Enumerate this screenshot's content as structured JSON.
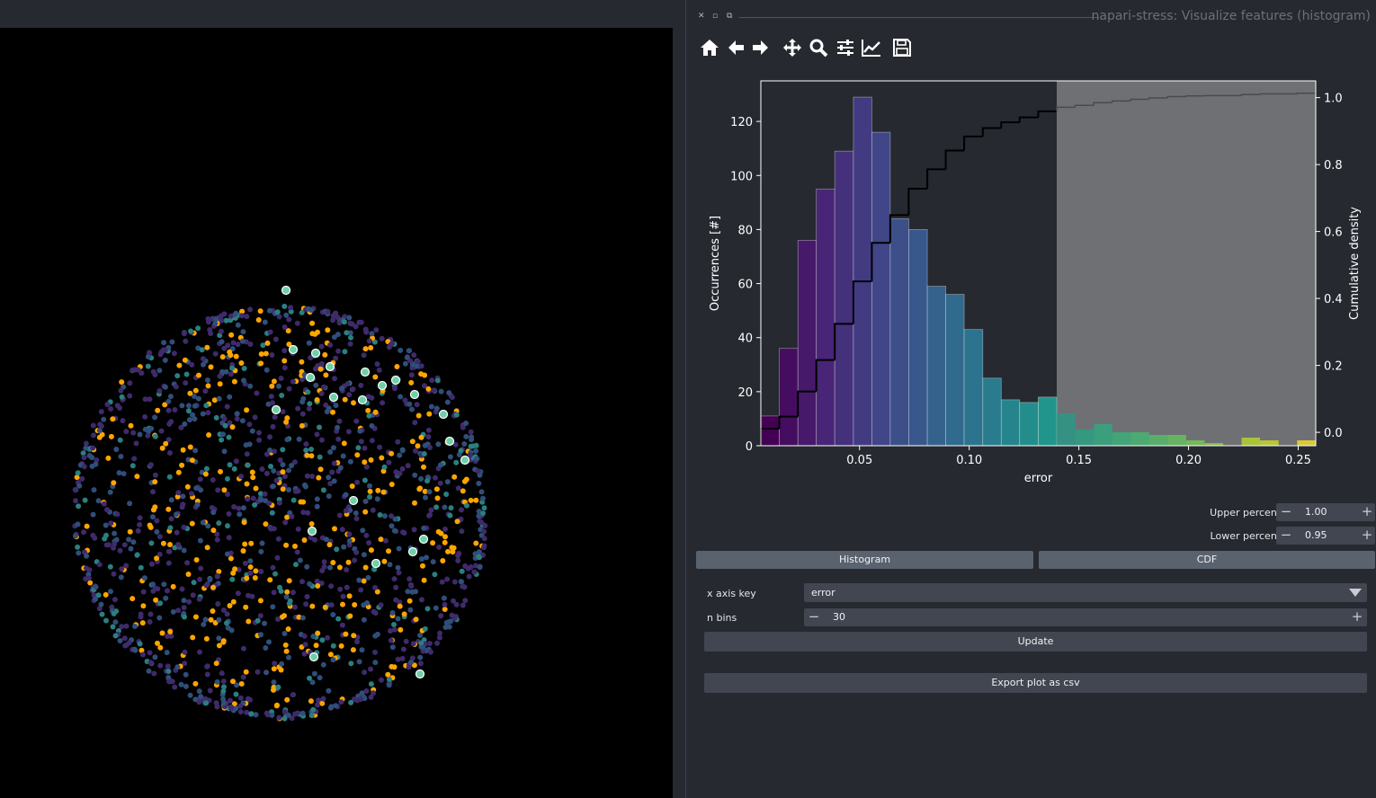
{
  "dock": {
    "title": "napari-stress: Visualize features (histogram)",
    "close_glyph": "✕",
    "float_glyph": "⧉",
    "min_glyph": "▫"
  },
  "toolbar": {
    "icons": [
      "home-icon",
      "back-icon",
      "forward-icon",
      "pan-icon",
      "zoom-icon",
      "subplots-icon",
      "edit-axes-icon",
      "save-icon"
    ]
  },
  "chart_data": {
    "type": "bar",
    "xlabel": "error",
    "ylabel": "Occurrences [#]",
    "y2label": "Cumulative density",
    "xlim": [
      0.005,
      0.258
    ],
    "ylim": [
      0,
      135
    ],
    "y2lim": [
      -0.04,
      1.05
    ],
    "xticks": [
      0.05,
      0.1,
      0.15,
      0.2,
      0.25
    ],
    "xtick_labels": [
      "0.05",
      "0.10",
      "0.15",
      "0.20",
      "0.25"
    ],
    "yticks": [
      0,
      20,
      40,
      60,
      80,
      100,
      120
    ],
    "ytick_labels": [
      "0",
      "20",
      "40",
      "60",
      "80",
      "100",
      "120"
    ],
    "y2ticks": [
      0.0,
      0.2,
      0.4,
      0.6,
      0.8,
      1.0
    ],
    "y2tick_labels": [
      "0.0",
      "0.2",
      "0.4",
      "0.6",
      "0.8",
      "1.0"
    ],
    "bin_edges": [
      0.005,
      0.0134,
      0.0219,
      0.0303,
      0.0387,
      0.0472,
      0.0556,
      0.064,
      0.0724,
      0.0809,
      0.0893,
      0.0977,
      0.1062,
      0.1146,
      0.123,
      0.1315,
      0.1399,
      0.1483,
      0.1568,
      0.1652,
      0.1736,
      0.182,
      0.1905,
      0.1989,
      0.2073,
      0.2158,
      0.2242,
      0.2326,
      0.2411,
      0.2495,
      0.2579
    ],
    "counts": [
      11,
      36,
      76,
      95,
      109,
      129,
      116,
      84,
      80,
      59,
      56,
      43,
      25,
      17,
      16,
      18,
      12,
      6,
      8,
      5,
      5,
      4,
      4,
      2,
      1,
      0,
      3,
      2,
      0,
      2
    ],
    "cdf": [
      0.011,
      0.047,
      0.122,
      0.216,
      0.324,
      0.451,
      0.566,
      0.649,
      0.728,
      0.786,
      0.842,
      0.884,
      0.909,
      0.926,
      0.941,
      0.959,
      0.971,
      0.977,
      0.985,
      0.99,
      0.995,
      0.999,
      1.003,
      1.005,
      1.006,
      1.006,
      1.009,
      1.011,
      1.011,
      1.013
    ],
    "highlight_x_from": 0.1399,
    "colors": {
      "plot_bg": "#262930",
      "highlight": "#6f7073",
      "cdf_line_inside": "#000000",
      "cdf_line_highlight": "#4a4a4a",
      "text": "#ffffff"
    }
  },
  "controls": {
    "upper_percentile": {
      "label": "Upper percentile",
      "value": "1.00"
    },
    "lower_percentile": {
      "label": "Lower percentile",
      "value": "0.95"
    },
    "histogram_button": "Histogram",
    "cdf_button": "CDF",
    "x_axis_key": {
      "label": "x axis key",
      "value": "error"
    },
    "n_bins": {
      "label": "n bins",
      "value": "30"
    },
    "update_button": "Update",
    "export_button": "Export plot as csv",
    "minus_glyph": "−",
    "plus_glyph": "+"
  },
  "viewer": {
    "colors": {
      "background": "#000000",
      "point_purple": "#3f2a6b",
      "point_blue": "#2f4e7a",
      "point_teal": "#2a7f80",
      "point_orange": "#ffa500",
      "point_highlight": "#6fd0a8"
    }
  }
}
